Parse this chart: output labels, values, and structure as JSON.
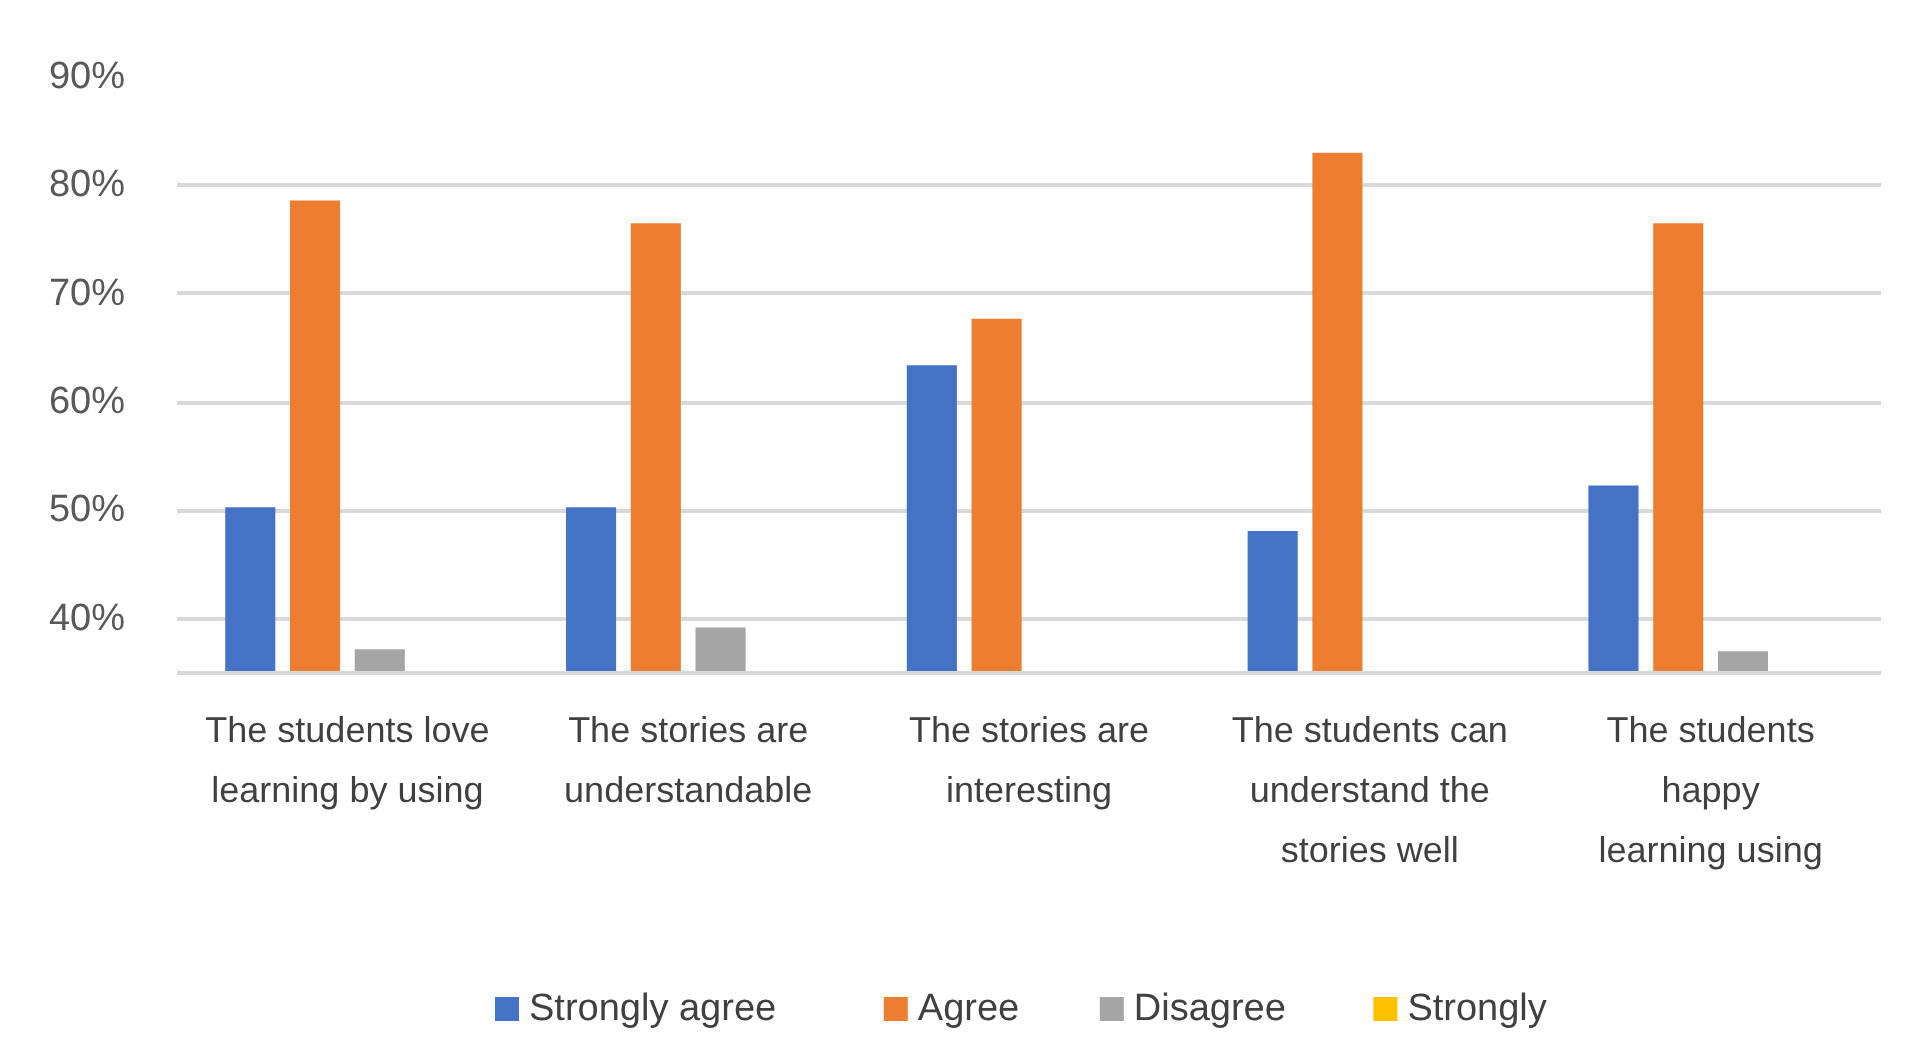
{
  "chart_data": {
    "type": "bar",
    "categories": [
      "The students love\nlearning by using",
      "The stories are\nunderstandable",
      "The stories are\ninteresting",
      "The students can\nunderstand the\nstories well",
      "The students\nhappy\nlearning using"
    ],
    "series": [
      {
        "name": "Strongly agree",
        "color": "#4472c4",
        "values": [
          50.3,
          50.3,
          63.4,
          48.1,
          52.3
        ]
      },
      {
        "name": "Agree",
        "color": "#ed7d31",
        "values": [
          78.6,
          76.5,
          67.7,
          83,
          76.5
        ]
      },
      {
        "name": "Disagree",
        "color": "#a5a5a5",
        "values": [
          37.2,
          39.2,
          null,
          null,
          37
        ]
      },
      {
        "name": "Strongly",
        "color": "#ffc000",
        "values": [
          null,
          null,
          null,
          null,
          null
        ]
      }
    ],
    "ylim": [
      35,
      90
    ],
    "yticks": [
      {
        "value": 40,
        "label": "40%"
      },
      {
        "value": 50,
        "label": "50%"
      },
      {
        "value": 60,
        "label": "60%"
      },
      {
        "value": 70,
        "label": "70%"
      },
      {
        "value": 80,
        "label": "80%"
      },
      {
        "value": 90,
        "label": "90%"
      }
    ],
    "grid": "y",
    "legend": "bottom"
  }
}
